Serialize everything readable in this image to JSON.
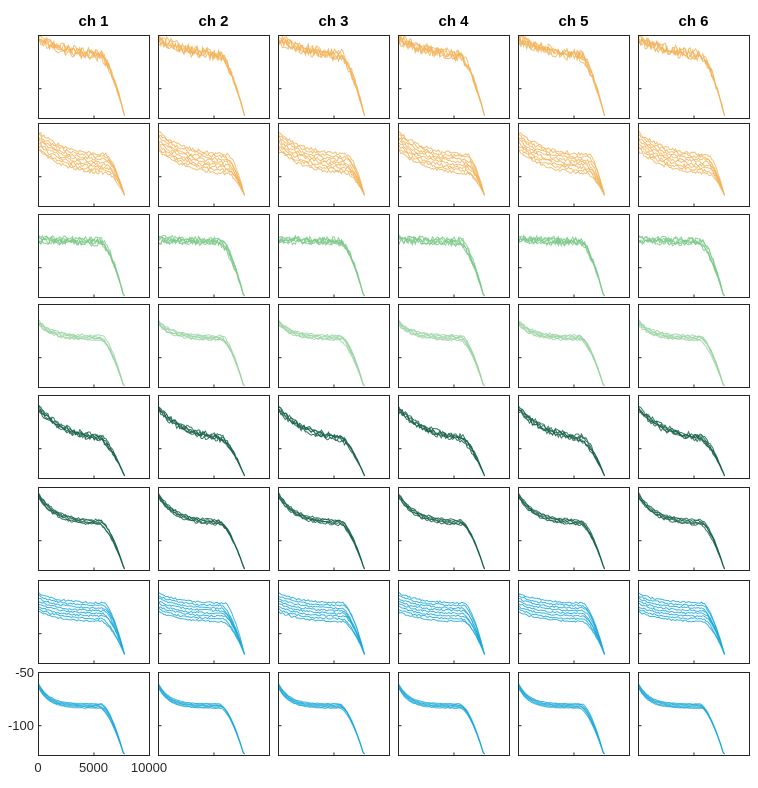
{
  "chart_data": {
    "type": "line",
    "title": "",
    "columns": [
      "ch 1",
      "ch 2",
      "ch 3",
      "ch 4",
      "ch 5",
      "ch 6"
    ],
    "xlim": [
      0,
      10000
    ],
    "ylim": [
      -128,
      -50
    ],
    "x_ticks": [
      0,
      5000,
      10000
    ],
    "x_tick_labels": [
      "0",
      "5000",
      "10000"
    ],
    "y_ticks": [
      -50,
      -100
    ],
    "y_tick_labels": [
      "-50",
      "-100"
    ],
    "grid": false,
    "legend": "none",
    "row_colors": [
      "#f2b45c",
      "#f2b45c",
      "#7cc98a",
      "#9bd4a3",
      "#16614a",
      "#16614a",
      "#1ba8d8",
      "#1ba8d8"
    ]
  }
}
